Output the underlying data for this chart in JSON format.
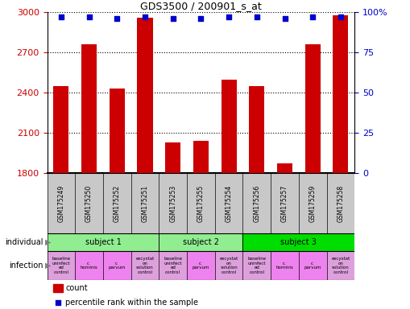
{
  "title": "GDS3500 / 200901_s_at",
  "bar_labels": [
    "GSM175249",
    "GSM175250",
    "GSM175252",
    "GSM175251",
    "GSM175253",
    "GSM175255",
    "GSM175254",
    "GSM175256",
    "GSM175257",
    "GSM175259",
    "GSM175258"
  ],
  "bar_values": [
    2450,
    2760,
    2430,
    2960,
    2030,
    2040,
    2500,
    2450,
    1870,
    2760,
    2980
  ],
  "percentile_values": [
    97,
    97,
    96,
    97,
    96,
    96,
    97,
    97,
    96,
    97,
    97
  ],
  "ylim_left": [
    1800,
    3000
  ],
  "ylim_right": [
    0,
    100
  ],
  "yticks_left": [
    1800,
    2100,
    2400,
    2700,
    3000
  ],
  "yticks_right": [
    0,
    25,
    50,
    75,
    100
  ],
  "bar_color": "#cc0000",
  "dot_color": "#0000cc",
  "subjects": [
    {
      "label": "subject 1",
      "start": 0,
      "end": 4,
      "color": "#90ee90"
    },
    {
      "label": "subject 2",
      "start": 4,
      "end": 7,
      "color": "#90ee90"
    },
    {
      "label": "subject 3",
      "start": 7,
      "end": 11,
      "color": "#00dd00"
    }
  ],
  "infections": [
    {
      "label": "baseline\nuninfect\ned\ncontrol",
      "color": "#dda0dd"
    },
    {
      "label": "c.\nhominis",
      "color": "#ee82ee"
    },
    {
      "label": "c.\nparvum",
      "color": "#ee82ee"
    },
    {
      "label": "excystat\non\nsolution\ncontrol",
      "color": "#dda0dd"
    },
    {
      "label": "baseline\nuninfect\ned\ncontrol",
      "color": "#dda0dd"
    },
    {
      "label": "c.\nparvum",
      "color": "#ee82ee"
    },
    {
      "label": "excystat\non\nsolution\ncontrol",
      "color": "#dda0dd"
    },
    {
      "label": "baseline\nuninfect\ned\ncontrol",
      "color": "#dda0dd"
    },
    {
      "label": "c.\nhominis",
      "color": "#ee82ee"
    },
    {
      "label": "c.\nparvum",
      "color": "#ee82ee"
    },
    {
      "label": "excystat\non\nsolution\ncontrol",
      "color": "#dda0dd"
    }
  ],
  "legend_count_color": "#cc0000",
  "legend_dot_color": "#0000cc",
  "xlabel_individual": "individual",
  "xlabel_infection": "infection",
  "tick_label_color_left": "#cc0000",
  "tick_label_color_right": "#0000cc",
  "gsm_bg_color": "#c8c8c8",
  "fig_width": 5.09,
  "fig_height": 3.84,
  "dpi": 100
}
